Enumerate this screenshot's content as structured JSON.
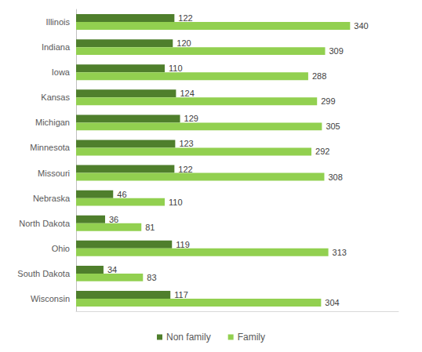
{
  "chart_data": {
    "type": "bar",
    "orientation": "horizontal",
    "categories": [
      "Illinois",
      "Indiana",
      "Iowa",
      "Kansas",
      "Michigan",
      "Minnesota",
      "Missouri",
      "Nebraska",
      "North Dakota",
      "Ohio",
      "South Dakota",
      "Wisconsin"
    ],
    "series": [
      {
        "name": "Non family",
        "color": "#4f7f2c",
        "values": [
          122,
          120,
          110,
          124,
          129,
          123,
          122,
          46,
          36,
          119,
          34,
          117
        ]
      },
      {
        "name": "Family",
        "color": "#92d050",
        "values": [
          340,
          309,
          288,
          299,
          305,
          292,
          308,
          110,
          81,
          313,
          83,
          304
        ]
      }
    ],
    "xlim": [
      0,
      400
    ],
    "grid": false,
    "legend": "bottom",
    "data_labels": true,
    "tick_labels": "y"
  }
}
